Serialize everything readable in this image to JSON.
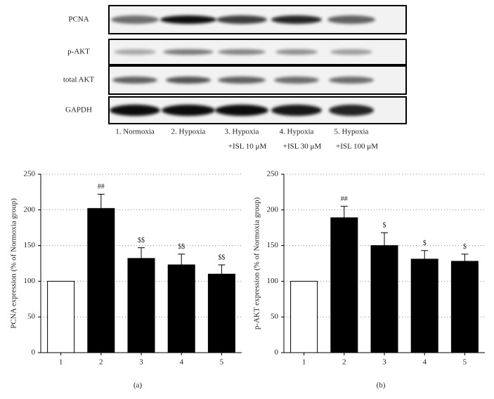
{
  "blot": {
    "rows": [
      "PCNA",
      "p-AKT",
      "total AKT",
      "GAPDH"
    ],
    "lanes": [
      [
        "1. Normoxia"
      ],
      [
        "2. Hypoxia"
      ],
      [
        "3. Hypoxia",
        "+ISL 10 μM"
      ],
      [
        "4. Hypoxia",
        "+ISL 30 μM"
      ],
      [
        "5. Hypoxia",
        "+ISL 100 μM"
      ]
    ]
  },
  "chart_data": [
    {
      "type": "bar",
      "panel_label": "(a)",
      "ylabel": "PCNA expression (% of Normoxia group)",
      "categories": [
        "1",
        "2",
        "3",
        "4",
        "5"
      ],
      "values": [
        100,
        202,
        132,
        123,
        110
      ],
      "errors": [
        null,
        20,
        15,
        15,
        13
      ],
      "annotations": [
        null,
        "##",
        "$$",
        "$$",
        "$$"
      ],
      "colors": [
        "#ffffff",
        "#000000",
        "#000000",
        "#000000",
        "#000000"
      ],
      "ylim": [
        0,
        250
      ],
      "yticks": [
        0,
        50,
        100,
        150,
        200,
        250
      ],
      "grid": true
    },
    {
      "type": "bar",
      "panel_label": "(b)",
      "ylabel": "p-AKT expression (% of Normoxia group)",
      "categories": [
        "1",
        "2",
        "3",
        "4",
        "5"
      ],
      "values": [
        100,
        189,
        150,
        131,
        128
      ],
      "errors": [
        null,
        16,
        18,
        12,
        10
      ],
      "annotations": [
        null,
        "##",
        "$",
        "$",
        "$"
      ],
      "colors": [
        "#ffffff",
        "#000000",
        "#000000",
        "#000000",
        "#000000"
      ],
      "ylim": [
        0,
        250
      ],
      "yticks": [
        0,
        50,
        100,
        150,
        200,
        250
      ],
      "grid": true
    }
  ]
}
